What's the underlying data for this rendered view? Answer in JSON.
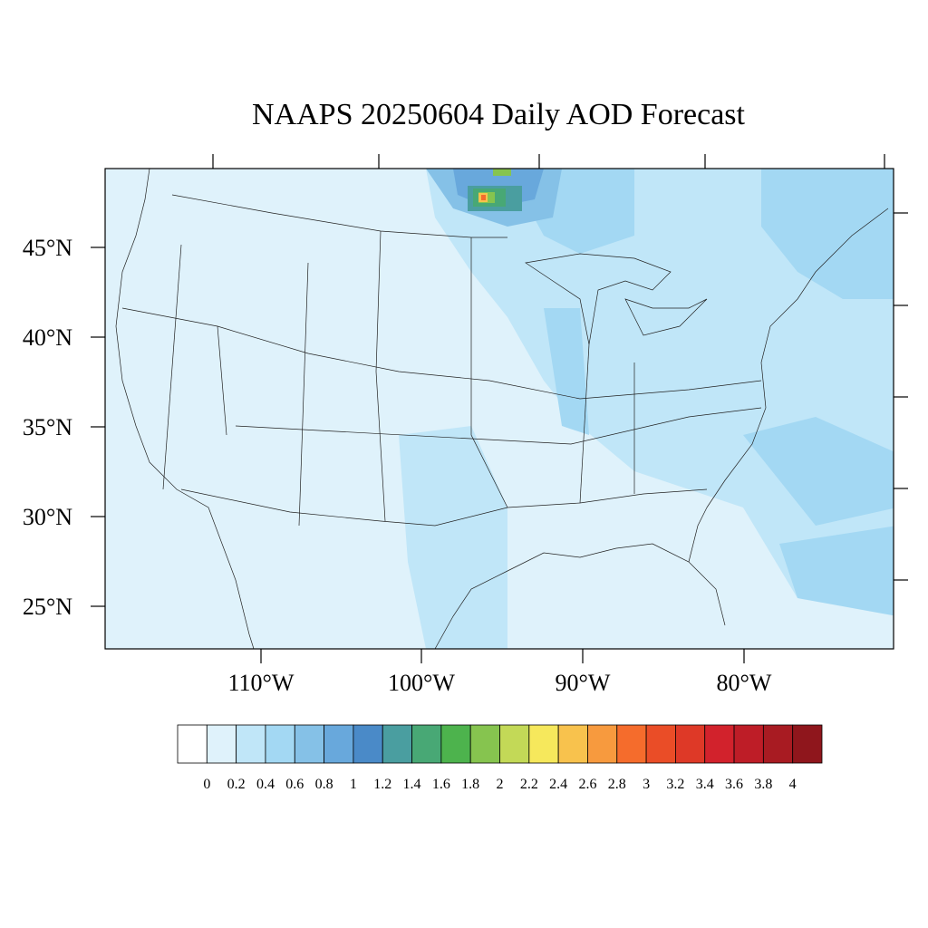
{
  "title": "NAAPS 20250604 Daily AOD Forecast",
  "map": {
    "region": "Continental United States",
    "lat_labels": [
      "45°N",
      "40°N",
      "35°N",
      "30°N",
      "25°N"
    ],
    "lon_labels": [
      "110°W",
      "100°W",
      "90°W",
      "80°W"
    ],
    "background_color": "#dff2fb"
  },
  "colorbar": {
    "labels": [
      "0",
      "0.2",
      "0.4",
      "0.6",
      "0.8",
      "1",
      "1.2",
      "1.4",
      "1.6",
      "1.8",
      "2",
      "2.2",
      "2.4",
      "2.6",
      "2.8",
      "3",
      "3.2",
      "3.4",
      "3.6",
      "3.8",
      "4"
    ],
    "colors": [
      "#ffffff",
      "#dff2fb",
      "#c0e6f8",
      "#a3d8f3",
      "#85c1e7",
      "#68a8dc",
      "#4a8ac8",
      "#4a9ea0",
      "#48a875",
      "#4db34d",
      "#86c44f",
      "#c3d957",
      "#f6e85c",
      "#f8c24d",
      "#f79a3e",
      "#f56c2c",
      "#ea4d27",
      "#de3927",
      "#d2222c",
      "#be1d27",
      "#a81b22",
      "#8f161c"
    ]
  }
}
